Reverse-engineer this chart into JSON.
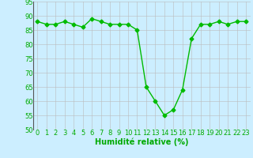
{
  "x": [
    0,
    1,
    2,
    3,
    4,
    5,
    6,
    7,
    8,
    9,
    10,
    11,
    12,
    13,
    14,
    15,
    16,
    17,
    18,
    19,
    20,
    21,
    22,
    23
  ],
  "y": [
    88,
    87,
    87,
    88,
    87,
    86,
    89,
    88,
    87,
    87,
    87,
    85,
    65,
    60,
    55,
    57,
    64,
    82,
    87,
    87,
    88,
    87,
    88,
    88
  ],
  "line_color": "#00bb00",
  "marker": "D",
  "marker_size": 2.5,
  "bg_color": "#cceeff",
  "grid_color": "#bbbbbb",
  "xlabel": "Humidité relative (%)",
  "xlabel_color": "#00aa00",
  "xlabel_fontsize": 7,
  "tick_color": "#00aa00",
  "tick_fontsize": 6,
  "ylim": [
    50,
    95
  ],
  "xlim": [
    -0.5,
    23.5
  ],
  "yticks": [
    50,
    55,
    60,
    65,
    70,
    75,
    80,
    85,
    90,
    95
  ],
  "xticks": [
    0,
    1,
    2,
    3,
    4,
    5,
    6,
    7,
    8,
    9,
    10,
    11,
    12,
    13,
    14,
    15,
    16,
    17,
    18,
    19,
    20,
    21,
    22,
    23
  ]
}
